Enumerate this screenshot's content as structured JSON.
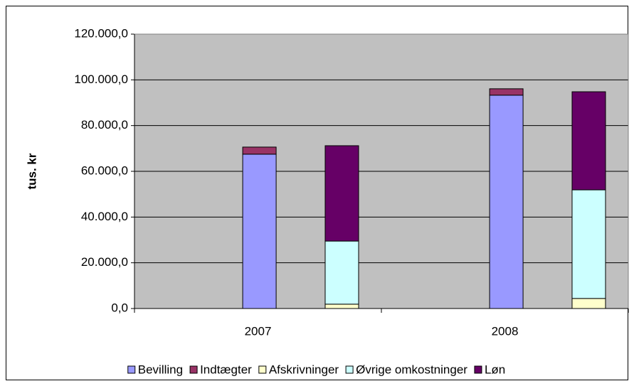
{
  "chart_data": {
    "type": "stacked_bar",
    "ylabel": "tus. kr",
    "categories": [
      "2007",
      "2008"
    ],
    "series": [
      {
        "name": "Bevilling",
        "color": "#9999ff",
        "stack": 0,
        "values": [
          67500,
          93300
        ]
      },
      {
        "name": "Indtægter",
        "color": "#993366",
        "stack": 0,
        "values": [
          3100,
          2800
        ]
      },
      {
        "name": "Afskrivninger",
        "color": "#ffffcc",
        "stack": 1,
        "values": [
          1900,
          4400
        ]
      },
      {
        "name": "Øvrige omkostninger",
        "color": "#ccffff",
        "stack": 1,
        "values": [
          27600,
          47500
        ]
      },
      {
        "name": "Løn",
        "color": "#660066",
        "stack": 1,
        "values": [
          41700,
          42900
        ]
      }
    ],
    "ylim": [
      0,
      120000
    ],
    "yticks": [
      {
        "value": 0,
        "label": "0,0"
      },
      {
        "value": 20000,
        "label": "20.000,0"
      },
      {
        "value": 40000,
        "label": "40.000,0"
      },
      {
        "value": 60000,
        "label": "60.000,0"
      },
      {
        "value": 80000,
        "label": "80.000,0"
      },
      {
        "value": 100000,
        "label": "100.000,0"
      },
      {
        "value": 120000,
        "label": "120.000,0"
      }
    ],
    "grid": true,
    "plot_background": "#c0c0c0",
    "legend": "bottom"
  }
}
